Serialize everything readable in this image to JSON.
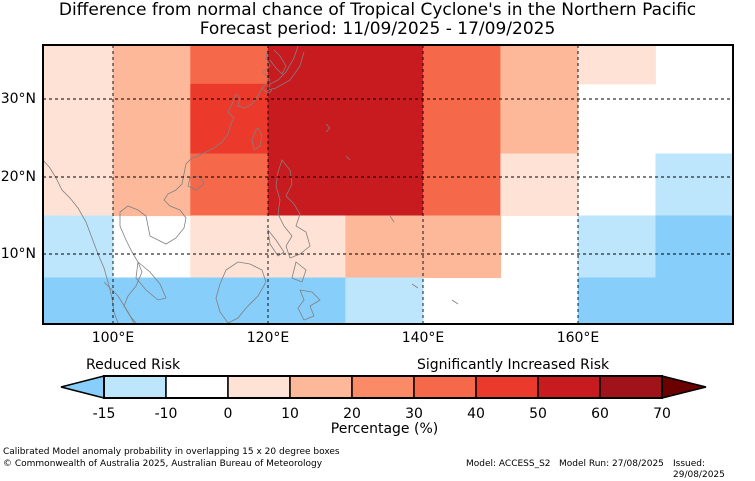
{
  "title_line1": "Difference from normal chance of Tropical Cyclone's in the Northern Pacific",
  "title_line2": "Forecast period: 11/09/2025 - 17/09/2025",
  "map": {
    "lon_range": [
      91,
      180
    ],
    "lat_range": [
      1,
      37
    ],
    "lat_labels": [
      "30°N",
      "20°N",
      "10°N"
    ],
    "lon_labels": [
      "100°E",
      "120°E",
      "140°E",
      "160°E"
    ],
    "grid": "dashed",
    "coastline_color": "#808080",
    "cells": [
      {
        "lon": [
          91,
          100
        ],
        "lat": [
          32,
          37
        ],
        "level": 3
      },
      {
        "lon": [
          100,
          110
        ],
        "lat": [
          32,
          37
        ],
        "level": 4
      },
      {
        "lon": [
          110,
          120
        ],
        "lat": [
          32,
          37
        ],
        "level": 6
      },
      {
        "lon": [
          120,
          140
        ],
        "lat": [
          32,
          37
        ],
        "level": 8
      },
      {
        "lon": [
          140,
          150
        ],
        "lat": [
          32,
          37
        ],
        "level": 6
      },
      {
        "lon": [
          150,
          160
        ],
        "lat": [
          32,
          37
        ],
        "level": 4
      },
      {
        "lon": [
          160,
          170
        ],
        "lat": [
          32,
          37
        ],
        "level": 3
      },
      {
        "lon": [
          91,
          100
        ],
        "lat": [
          15,
          32
        ],
        "level": 3
      },
      {
        "lon": [
          100,
          110
        ],
        "lat": [
          15,
          32
        ],
        "level": 4
      },
      {
        "lon": [
          110,
          120
        ],
        "lat": [
          27,
          32
        ],
        "level": 7
      },
      {
        "lon": [
          110,
          120
        ],
        "lat": [
          23,
          27
        ],
        "level": 7
      },
      {
        "lon": [
          110,
          120
        ],
        "lat": [
          15,
          23
        ],
        "level": 6
      },
      {
        "lon": [
          120,
          140
        ],
        "lat": [
          15,
          32
        ],
        "level": 8
      },
      {
        "lon": [
          140,
          150
        ],
        "lat": [
          15,
          32
        ],
        "level": 6
      },
      {
        "lon": [
          150,
          160
        ],
        "lat": [
          23,
          32
        ],
        "level": 4
      },
      {
        "lon": [
          150,
          160
        ],
        "lat": [
          15,
          23
        ],
        "level": 3
      },
      {
        "lon": [
          170,
          180
        ],
        "lat": [
          15,
          23
        ],
        "level": 1
      },
      {
        "lon": [
          91,
          100
        ],
        "lat": [
          7,
          15
        ],
        "level": 1
      },
      {
        "lon": [
          110,
          130
        ],
        "lat": [
          7,
          15
        ],
        "level": 3
      },
      {
        "lon": [
          130,
          150
        ],
        "lat": [
          7,
          15
        ],
        "level": 4
      },
      {
        "lon": [
          160,
          170
        ],
        "lat": [
          7,
          15
        ],
        "level": 1
      },
      {
        "lon": [
          170,
          180
        ],
        "lat": [
          7,
          15
        ],
        "level": 0
      },
      {
        "lon": [
          91,
          130
        ],
        "lat": [
          1,
          7
        ],
        "level": 0
      },
      {
        "lon": [
          130,
          140
        ],
        "lat": [
          1,
          7
        ],
        "level": 1
      },
      {
        "lon": [
          160,
          180
        ],
        "lat": [
          1,
          7
        ],
        "level": 0
      }
    ]
  },
  "colorbar": {
    "reduced_label": "Reduced Risk",
    "increased_label": "Significantly Increased Risk",
    "title": "Percentage (%)",
    "ticks": [
      "-15",
      "-10",
      "0",
      "10",
      "20",
      "30",
      "40",
      "50",
      "60",
      "70"
    ],
    "under_color": "#87cefa",
    "over_color": "#6b0000",
    "colors": [
      "#bde5fb",
      "#ffffff",
      "#ffe2d6",
      "#fdb89a",
      "#fb8a67",
      "#f5684a",
      "#eb3a2c",
      "#c81b1f",
      "#a0131a"
    ]
  },
  "footer": {
    "line1": "Calibrated Model anomaly probability in overlapping 15 x 20 degree boxes",
    "line2": "© Commonwealth of Australia 2025, Australian Bureau of Meteorology",
    "model": "Model: ACCESS_S2",
    "run": "Model Run: 27/08/2025",
    "issued": "Issued: 29/08/2025"
  }
}
